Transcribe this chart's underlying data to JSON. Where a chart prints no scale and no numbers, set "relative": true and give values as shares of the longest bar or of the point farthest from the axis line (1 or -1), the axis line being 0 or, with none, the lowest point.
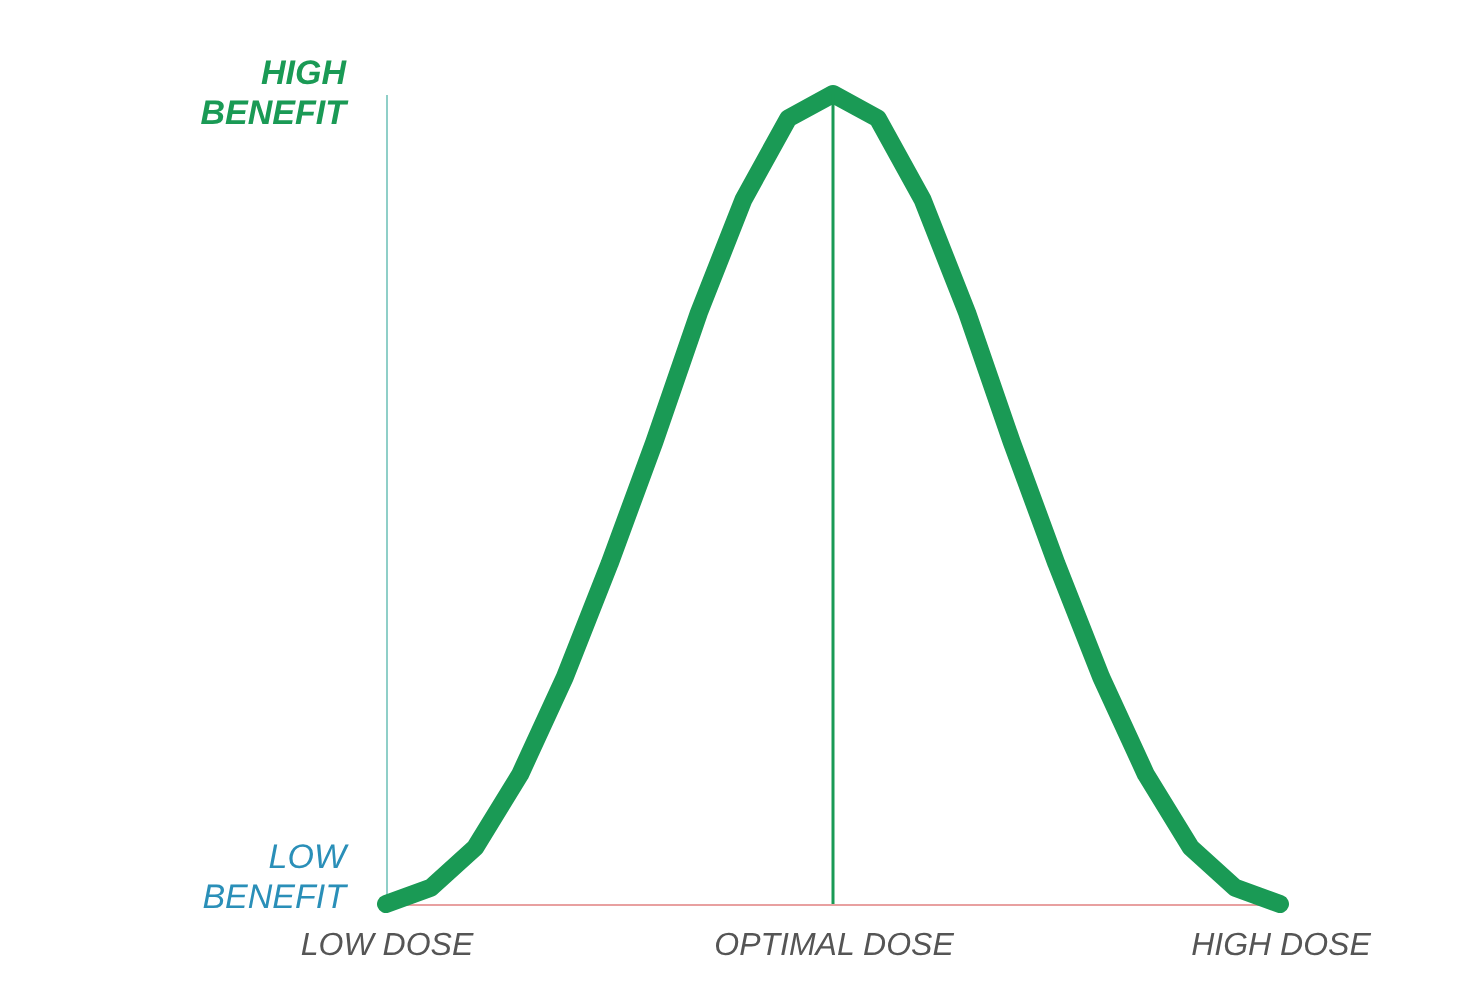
{
  "chart_data": {
    "type": "line",
    "relative": true,
    "categories": [
      "LOW DOSE",
      null,
      null,
      null,
      null,
      null,
      null,
      null,
      null,
      null,
      "OPTIMAL DOSE",
      null,
      null,
      null,
      null,
      null,
      null,
      null,
      null,
      null,
      "HIGH DOSE"
    ],
    "series": [
      {
        "color": "#1a9a55",
        "values": [
          0,
          0.02,
          0.07,
          0.16,
          0.28,
          0.42,
          0.57,
          0.73,
          0.87,
          0.97,
          1,
          0.97,
          0.87,
          0.73,
          0.57,
          0.42,
          0.28,
          0.16,
          0.07,
          0.02,
          0
        ]
      }
    ],
    "ref_lines": [
      {
        "axis": "x",
        "value": "OPTIMAL DOSE",
        "color": "#1a9a55"
      }
    ],
    "annotations": [
      "HIGH BENEFIT",
      "LOW BENEFIT"
    ],
    "grid": false,
    "legend": false,
    "marker": "none",
    "line_style": "solid"
  }
}
